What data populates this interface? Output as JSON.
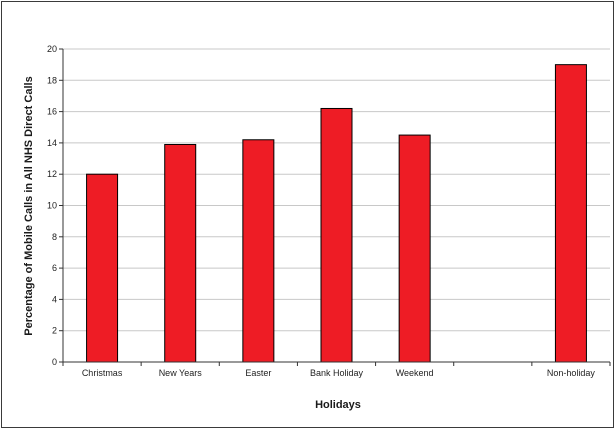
{
  "chart_data": {
    "type": "bar",
    "categories": [
      "Christmas",
      "New Years",
      "Easter",
      "Bank Holiday",
      "Weekend",
      "",
      "Non-holiday"
    ],
    "values": [
      12.0,
      13.9,
      14.2,
      16.2,
      14.5,
      null,
      19.0
    ],
    "title": "",
    "xlabel": "Holidays",
    "ylabel": "Percentage of Mobile Calls in All NHS Direct Calls",
    "ylim": [
      0,
      20
    ],
    "yticks": [
      0,
      2,
      4,
      6,
      8,
      10,
      12,
      14,
      16,
      18,
      20
    ],
    "grid": true,
    "legend": "none",
    "bar_color": "#ee1c25",
    "bar_edge_color": "#000000"
  }
}
